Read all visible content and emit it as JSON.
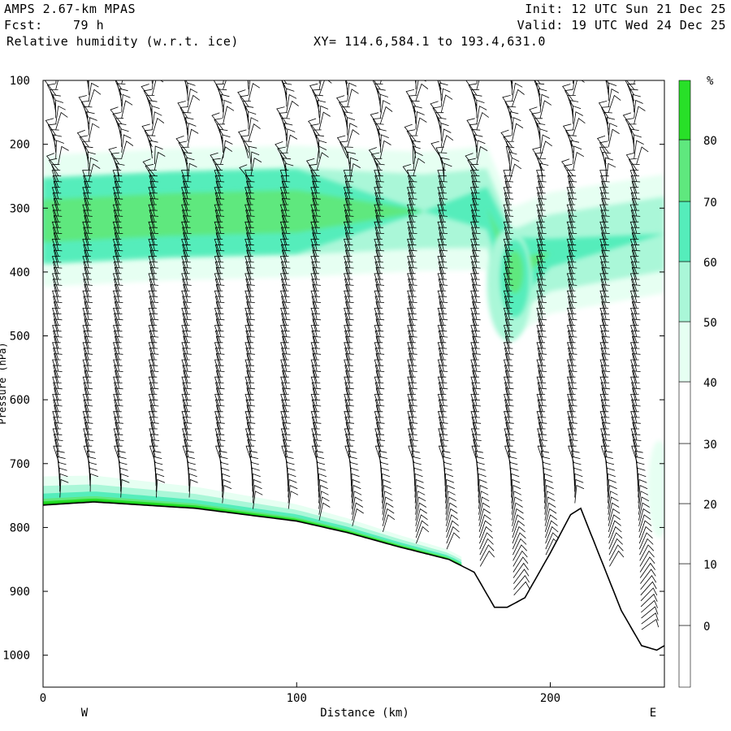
{
  "header": {
    "model": "AMPS 2.67-km MPAS",
    "fcst_label": "Fcst:",
    "fcst_value": "79 h",
    "field": "Relative humidity (w.r.t. ice)",
    "init": "Init: 12 UTC Sun 21 Dec 25",
    "valid": "Valid: 19 UTC Wed 24 Dec 25",
    "xy": "XY= 114.6,584.1 to 193.4,631.0"
  },
  "colors": {
    "rh_levels": [
      "#e6fff2",
      "#aaf7d8",
      "#55edbb",
      "#5fe87e",
      "#28e028",
      "#16c516",
      "#089f08"
    ],
    "terrain_band": [
      "#22dd22",
      "#11aa11"
    ],
    "barb": "#000000"
  },
  "chart_data": {
    "type": "heatmap",
    "title": "Relative humidity (w.r.t. ice)",
    "xlabel": "Distance (km)",
    "ylabel": "Pressure (hPa)",
    "xlim": [
      0,
      245
    ],
    "ylim": [
      1050,
      100
    ],
    "x_ticks": [
      "0",
      "100",
      "200"
    ],
    "x_tick_values": [
      0,
      100,
      200
    ],
    "y_ticks": [
      "100",
      "200",
      "300",
      "400",
      "500",
      "600",
      "700",
      "800",
      "900",
      "1000"
    ],
    "y_tick_values": [
      100,
      200,
      300,
      400,
      500,
      600,
      700,
      800,
      900,
      1000
    ],
    "west_label": "W",
    "east_label": "E",
    "colorbar": {
      "unit": "%",
      "labels": [
        "80",
        "70",
        "60",
        "50",
        "40",
        "30",
        "20",
        "10",
        "0"
      ],
      "levels": [
        80,
        70,
        60,
        50,
        40,
        30,
        20,
        10,
        0
      ]
    },
    "terrain_surface_hpa": {
      "x": [
        0,
        20,
        40,
        60,
        80,
        100,
        120,
        140,
        160,
        170,
        178,
        183,
        190,
        200,
        208,
        212,
        220,
        228,
        236,
        242,
        245
      ],
      "p": [
        765,
        760,
        765,
        770,
        780,
        790,
        808,
        830,
        850,
        870,
        925,
        925,
        910,
        840,
        780,
        770,
        850,
        930,
        985,
        992,
        985
      ]
    },
    "rh_moist_layer_hpa": {
      "x": [
        0,
        50,
        100,
        150,
        175,
        185,
        200,
        245
      ],
      "p_center": [
        320,
        310,
        305,
        305,
        300,
        400,
        370,
        340
      ],
      "rh_max": [
        70,
        70,
        70,
        45,
        55,
        65,
        50,
        45
      ]
    },
    "wind_barb_columns_km": [
      6,
      18,
      30,
      44,
      57,
      70,
      82,
      96,
      108,
      121,
      133,
      146,
      158,
      171,
      184,
      197,
      209,
      222,
      234
    ]
  }
}
